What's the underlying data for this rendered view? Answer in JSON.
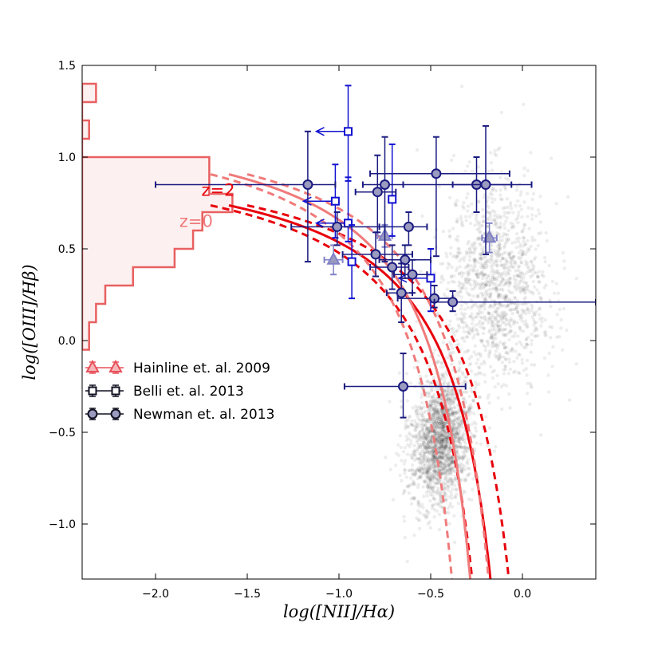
{
  "chart_data": {
    "type": "scatter",
    "xlabel": "log([NII]/Hα)",
    "ylabel": "log([OIII]/Hβ)",
    "xlim": [
      -2.4,
      0.4
    ],
    "ylim": [
      -1.3,
      1.5
    ],
    "xticks": [
      -2.0,
      -1.5,
      -1.0,
      -0.5,
      0.0
    ],
    "xtick_labels": [
      "−2.0",
      "−1.5",
      "−1.0",
      "−0.5",
      "0.0"
    ],
    "yticks": [
      -1.0,
      -0.5,
      0.0,
      0.5,
      1.0,
      1.5
    ],
    "ytick_labels": [
      "−1.0",
      "−0.5",
      "0.0",
      "0.5",
      "1.0",
      "1.5"
    ],
    "colors": {
      "z2": "#e8000b",
      "z0": "#f07a7a",
      "hist": "#e86060",
      "hist_fill": "#fdf0f0",
      "newman": "#1a1a80",
      "belli": "#1010d0",
      "hainline": "#8080c8",
      "marker_fill": "#9b9bc0",
      "background_points": "#000000"
    },
    "curves": [
      {
        "name": "z2",
        "label": "z=2",
        "color": "#e8000b",
        "label_x": -1.75,
        "label_y": 0.79,
        "a": 0.61,
        "b": 0.08,
        "c": 1.1,
        "dash_shift": 0.1
      },
      {
        "name": "z0",
        "label": "z=0",
        "color": "#f07a7a",
        "label_x": -1.87,
        "label_y": 0.62,
        "a": 0.61,
        "b": -0.05,
        "c": 1.3,
        "dash_shift": 0.1
      }
    ],
    "histogram": {
      "orientation": "horizontal",
      "bins": [
        [
          -0.05,
          0.1,
          0.03
        ],
        [
          0.1,
          0.2,
          0.06
        ],
        [
          0.2,
          0.3,
          0.1
        ],
        [
          0.3,
          0.4,
          0.22
        ],
        [
          0.4,
          0.5,
          0.4
        ],
        [
          0.5,
          0.6,
          0.48
        ],
        [
          0.6,
          0.7,
          0.52
        ],
        [
          0.7,
          0.8,
          0.65
        ],
        [
          0.8,
          1.0,
          0.55
        ],
        [
          1.0,
          1.1,
          0.0
        ],
        [
          1.1,
          1.2,
          0.03
        ],
        [
          1.2,
          1.3,
          0.0
        ],
        [
          1.3,
          1.4,
          0.06
        ]
      ],
      "width_scale": 0.45
    },
    "series": [
      {
        "name": "Hainline et. al. 2009",
        "marker": "triangle",
        "points": [
          {
            "x": -1.03,
            "y": 0.44,
            "xerr": [
              0.05,
              0.05
            ],
            "yerr": [
              0.08,
              0.08
            ]
          },
          {
            "x": -0.75,
            "y": 0.57,
            "xerr": [
              0.04,
              0.04
            ],
            "yerr": [
              0.06,
              0.06
            ]
          },
          {
            "x": -0.18,
            "y": 0.56,
            "xerr": [
              0.04,
              0.04
            ],
            "yerr": [
              0.08,
              0.08
            ]
          }
        ]
      },
      {
        "name": "Belli et. al. 2013",
        "marker": "square",
        "points": [
          {
            "x": -0.95,
            "y": 1.14,
            "xerr": [
              0.0,
              0.0
            ],
            "yerr": [
              0.27,
              0.25
            ],
            "upper_limit_x": true
          },
          {
            "x": -1.02,
            "y": 0.76,
            "xerr": [
              0.0,
              0.0
            ],
            "yerr": [
              0.2,
              0.2
            ],
            "upper_limit_x": true
          },
          {
            "x": -0.95,
            "y": 0.64,
            "xerr": [
              0.0,
              0.0
            ],
            "yerr": [
              0.1,
              0.25
            ],
            "upper_limit_x": true
          },
          {
            "x": -0.93,
            "y": 0.43,
            "xerr": [
              0.0,
              0.0
            ],
            "yerr": [
              0.2,
              0.2
            ]
          },
          {
            "x": -0.71,
            "y": 0.77,
            "xerr": [
              0.0,
              0.0
            ],
            "yerr": [
              0.2,
              0.3
            ]
          },
          {
            "x": -0.5,
            "y": 0.34,
            "xerr": [
              0.0,
              0.0
            ],
            "yerr": [
              0.18,
              0.16
            ],
            "upper_limit_x": true
          }
        ]
      },
      {
        "name": "Newman et. al. 2013",
        "marker": "circle",
        "points": [
          {
            "x": -1.17,
            "y": 0.85,
            "xerr": [
              0.83,
              0.15
            ],
            "yerr": [
              0.42,
              0.29
            ]
          },
          {
            "x": -1.01,
            "y": 0.62,
            "xerr": [
              0.25,
              0.26
            ],
            "yerr": [
              0.1,
              0.08
            ]
          },
          {
            "x": -0.79,
            "y": 0.81,
            "xerr": [
              0.12,
              0.1
            ],
            "yerr": [
              0.22,
              0.2
            ]
          },
          {
            "x": -0.75,
            "y": 0.85,
            "xerr": [
              0.12,
              0.1
            ],
            "yerr": [
              0.42,
              0.26
            ]
          },
          {
            "x": -0.8,
            "y": 0.47,
            "xerr": [
              0.18,
              0.2
            ],
            "yerr": [
              0.12,
              0.12
            ]
          },
          {
            "x": -0.62,
            "y": 0.62,
            "xerr": [
              0.16,
              0.1
            ],
            "yerr": [
              0.1,
              0.08
            ]
          },
          {
            "x": -0.64,
            "y": 0.44,
            "xerr": [
              0.14,
              0.14
            ],
            "yerr": [
              0.1,
              0.08
            ]
          },
          {
            "x": -0.71,
            "y": 0.4,
            "xerr": [
              0.12,
              0.09
            ],
            "yerr": [
              0.12,
              0.12
            ]
          },
          {
            "x": -0.6,
            "y": 0.36,
            "xerr": [
              0.1,
              0.08
            ],
            "yerr": [
              0.1,
              0.08
            ]
          },
          {
            "x": -0.66,
            "y": 0.26,
            "xerr": [
              0.08,
              0.06
            ],
            "yerr": [
              0.16,
              0.16
            ]
          },
          {
            "x": -0.47,
            "y": 0.91,
            "xerr": [
              0.36,
              0.4
            ],
            "yerr": [
              0.45,
              0.2
            ]
          },
          {
            "x": -0.48,
            "y": 0.23,
            "xerr": [
              0.2,
              0.1
            ],
            "yerr": [
              0.05,
              0.07
            ]
          },
          {
            "x": -0.38,
            "y": 0.21,
            "xerr": [
              0.1,
              0.78
            ],
            "yerr": [
              0.05,
              0.06
            ]
          },
          {
            "x": -0.25,
            "y": 0.85,
            "xerr": [
              0.4,
              0.3
            ],
            "yerr": [
              0.15,
              0.15
            ]
          },
          {
            "x": -0.2,
            "y": 0.85,
            "xerr": [
              0.18,
              0.14
            ],
            "yerr": [
              0.38,
              0.32
            ]
          },
          {
            "x": -0.65,
            "y": -0.25,
            "xerr": [
              0.32,
              0.34
            ],
            "yerr": [
              0.17,
              0.18
            ]
          }
        ]
      }
    ],
    "background": {
      "description_count": 2,
      "clusters": [
        {
          "cx": -0.45,
          "cy": -0.55,
          "sx": 0.09,
          "sy": 0.17,
          "n": 1800,
          "rot": -0.6
        },
        {
          "cx": -0.15,
          "cy": 0.3,
          "sx": 0.15,
          "sy": 0.28,
          "n": 1300,
          "rot": -0.3
        }
      ]
    },
    "legend": {
      "position": "center-left",
      "entries": [
        {
          "label": "Hainline et. al. 2009",
          "marker": "triangle"
        },
        {
          "label": "Belli et. al. 2013",
          "marker": "square"
        },
        {
          "label": "Newman et. al. 2013",
          "marker": "circle"
        }
      ]
    }
  }
}
